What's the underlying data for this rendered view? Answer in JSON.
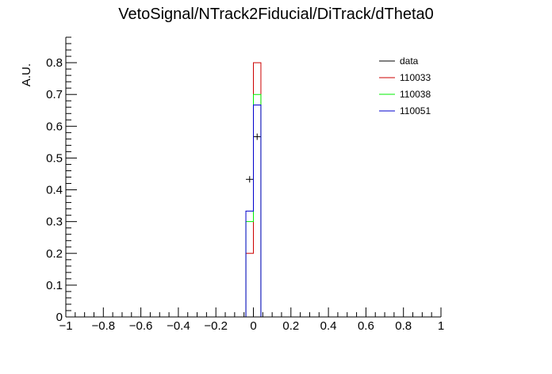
{
  "chart_data": {
    "type": "histogram",
    "title": "VetoSignal/NTrack2Fiducial/DiTrack/dTheta0",
    "ylabel": "A.U.",
    "xlabel": "",
    "xlim": [
      -1,
      1
    ],
    "ylim": [
      0,
      0.88
    ],
    "grid": false,
    "legend_position": "top-right",
    "x_ticks": [
      -1,
      -0.8,
      -0.6,
      -0.4,
      -0.2,
      0,
      0.2,
      0.4,
      0.6,
      0.8,
      1
    ],
    "x_tick_labels": [
      "−1",
      "−0.8",
      "−0.6",
      "−0.4",
      "−0.2",
      "0",
      "0.2",
      "0.4",
      "0.6",
      "0.8",
      "1"
    ],
    "y_ticks": [
      0,
      0.1,
      0.2,
      0.3,
      0.4,
      0.5,
      0.6,
      0.7,
      0.8
    ],
    "y_tick_labels": [
      "0",
      "0.1",
      "0.2",
      "0.3",
      "0.4",
      "0.5",
      "0.6",
      "0.7",
      "0.8"
    ],
    "bin_edges": [
      -0.04,
      0,
      0.04
    ],
    "series": [
      {
        "name": "data",
        "style": "points",
        "color": "#000000",
        "values": [
          0.433,
          0.567
        ],
        "errors": [
          0.01,
          0.01
        ]
      },
      {
        "name": "110033",
        "style": "step",
        "color": "#cc0000",
        "values": [
          0.2,
          0.8
        ]
      },
      {
        "name": "110038",
        "style": "step",
        "color": "#00ee00",
        "values": [
          0.3,
          0.7
        ]
      },
      {
        "name": "110051",
        "style": "step",
        "color": "#0000cc",
        "values": [
          0.333,
          0.667
        ]
      }
    ]
  }
}
